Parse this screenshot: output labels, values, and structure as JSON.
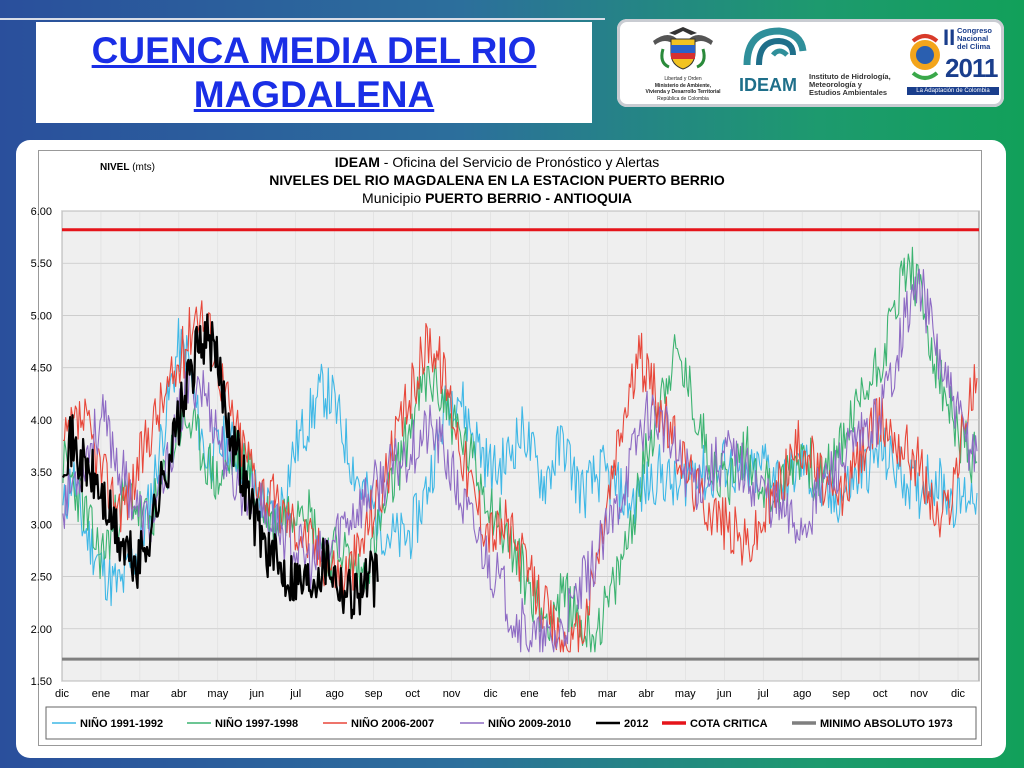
{
  "slide": {
    "title_line1": "CUENCA MEDIA DEL RIO",
    "title_line2": "MAGDALENA"
  },
  "logos": {
    "ministry_line1": "Libertad y Orden",
    "ministry_line2": "Ministerio de Ambiente,",
    "ministry_line3": "Vivienda y Desarrollo Territorial",
    "ministry_line4": "República de Colombia",
    "ideam_name": "IDEAM",
    "ideam_line1": "Instituto de Hidrología,",
    "ideam_line2": "Meteorología y",
    "ideam_line3": "Estudios Ambientales",
    "congreso_roman": "II",
    "congreso_line1": "Congreso",
    "congreso_line2": "Nacional",
    "congreso_line3": "del Clima",
    "congreso_year": "2011",
    "congreso_footer": "La Adaptación de Colombia"
  },
  "chart_data": {
    "type": "line",
    "header_bold1": "IDEAM",
    "header_rest1": " - Oficina del Servicio de Pronóstico y Alertas",
    "title": "NIVELES DEL RIO MAGDALENA EN LA ESTACION PUERTO BERRIO",
    "subtitle_prefix": "Municipio ",
    "subtitle_bold": "PUERTO BERRIO - ANTIOQUIA",
    "ylabel_bold": "NIVEL",
    "ylabel_rest": " (mts)",
    "ylim": [
      1.5,
      6.0
    ],
    "yticks": [
      "6.00",
      "5.50",
      "5.00",
      "4.50",
      "4.00",
      "3.50",
      "3.00",
      "2.50",
      "2.00",
      "1.50"
    ],
    "xticks": [
      "dic",
      "ene",
      "mar",
      "abr",
      "may",
      "jun",
      "jul",
      "ago",
      "sep",
      "oct",
      "nov",
      "dic",
      "ene",
      "feb",
      "mar",
      "abr",
      "may",
      "jun",
      "jul",
      "ago",
      "sep",
      "oct",
      "nov",
      "dic"
    ],
    "grid": true,
    "legend_position": "bottom",
    "series": [
      {
        "name": "NIÑO 1991-1992",
        "color": "#3fb8e6",
        "seed": 11,
        "values": [
          3.1,
          3.5,
          3.0,
          2.8,
          2.6,
          2.45,
          2.4,
          2.6,
          2.8,
          3.2,
          3.7,
          4.2,
          4.7,
          4.6,
          4.0,
          3.6,
          3.7,
          3.8,
          3.7,
          3.5,
          3.3,
          3.2,
          3.0,
          3.3,
          3.7,
          3.9,
          4.1,
          4.3,
          4.2,
          3.9,
          3.6,
          3.35,
          3.2,
          3.0,
          2.9,
          2.85,
          2.9,
          3.1,
          3.4,
          3.8,
          4.2,
          4.3,
          4.0,
          3.8,
          3.6,
          3.5,
          3.6,
          3.8,
          3.9,
          3.6,
          3.4,
          3.6,
          3.8,
          3.5,
          3.3,
          3.4,
          3.5,
          3.4,
          3.3,
          3.2,
          3.3,
          3.4,
          3.5,
          3.4,
          3.3,
          3.5,
          3.6,
          3.4,
          3.5,
          3.6,
          3.5,
          3.4,
          3.5,
          3.6,
          3.5,
          3.4,
          3.5,
          3.6,
          3.4,
          3.3,
          3.2,
          3.3,
          3.4,
          3.5,
          3.6,
          3.7,
          3.6,
          3.5,
          3.4,
          3.3,
          3.5,
          3.4,
          3.3,
          3.2,
          3.3,
          3.3
        ]
      },
      {
        "name": "NIÑO 1997-1998",
        "color": "#3cb371",
        "seed": 23,
        "values": [
          3.6,
          3.4,
          3.2,
          2.9,
          2.7,
          2.9,
          3.2,
          3.3,
          3.1,
          3.0,
          3.3,
          3.6,
          3.9,
          4.0,
          3.8,
          3.6,
          3.4,
          3.5,
          3.7,
          3.6,
          3.3,
          3.1,
          3.0,
          3.1,
          3.2,
          3.3,
          3.0,
          2.8,
          2.7,
          2.8,
          2.6,
          2.5,
          2.7,
          3.0,
          3.3,
          3.6,
          3.9,
          4.2,
          4.4,
          4.3,
          4.1,
          3.9,
          3.7,
          3.5,
          3.3,
          3.1,
          2.9,
          2.7,
          2.5,
          2.3,
          2.1,
          2.2,
          2.3,
          2.2,
          2.0,
          1.95,
          2.1,
          2.3,
          2.6,
          3.0,
          3.4,
          3.8,
          4.2,
          4.5,
          4.6,
          4.3,
          4.0,
          3.7,
          3.5,
          3.4,
          3.6,
          3.7,
          3.5,
          3.4,
          3.3,
          3.4,
          3.6,
          3.7,
          3.5,
          3.4,
          3.6,
          3.8,
          4.0,
          4.2,
          4.4,
          4.6,
          4.9,
          5.3,
          5.5,
          5.2,
          4.8,
          4.4,
          4.1,
          3.9,
          3.7,
          3.6
        ]
      },
      {
        "name": "NIÑO 2006-2007",
        "color": "#e8473a",
        "seed": 37,
        "values": [
          3.7,
          3.9,
          4.0,
          3.8,
          3.5,
          3.3,
          3.2,
          3.3,
          3.6,
          3.9,
          4.1,
          4.3,
          4.5,
          4.8,
          5.1,
          4.9,
          4.6,
          4.2,
          3.9,
          3.7,
          3.5,
          3.3,
          3.2,
          3.1,
          3.0,
          2.9,
          2.8,
          2.7,
          2.6,
          2.5,
          2.6,
          2.8,
          3.1,
          3.3,
          3.6,
          3.9,
          4.2,
          4.5,
          4.8,
          4.6,
          4.3,
          3.9,
          3.5,
          3.2,
          3.0,
          2.9,
          3.0,
          2.8,
          2.6,
          2.4,
          2.2,
          2.0,
          1.85,
          1.8,
          2.0,
          2.4,
          2.9,
          3.4,
          3.9,
          4.3,
          4.6,
          4.4,
          4.1,
          3.9,
          3.7,
          3.5,
          3.3,
          3.2,
          3.1,
          3.0,
          2.9,
          2.8,
          2.9,
          3.1,
          3.3,
          3.5,
          3.7,
          3.8,
          3.6,
          3.4,
          3.2,
          3.3,
          3.5,
          3.7,
          3.9,
          4.0,
          3.9,
          3.8,
          3.7,
          3.6,
          3.3,
          3.0,
          3.2,
          3.6,
          4.1,
          4.4
        ]
      },
      {
        "name": "NIÑO 2009-2010",
        "color": "#8e6bc4",
        "seed": 53,
        "values": [
          3.2,
          3.4,
          3.6,
          3.8,
          4.0,
          3.8,
          3.5,
          3.3,
          3.1,
          3.0,
          3.2,
          3.6,
          4.0,
          4.3,
          4.4,
          4.2,
          3.9,
          3.6,
          3.4,
          3.3,
          3.2,
          3.1,
          3.0,
          2.9,
          2.8,
          2.7,
          2.6,
          2.7,
          2.8,
          3.0,
          3.1,
          3.2,
          3.3,
          3.4,
          3.5,
          3.6,
          3.7,
          3.8,
          3.9,
          3.8,
          3.6,
          3.3,
          3.1,
          2.9,
          2.7,
          2.5,
          2.3,
          2.1,
          2.0,
          1.9,
          1.85,
          1.9,
          2.0,
          2.2,
          2.4,
          2.6,
          2.8,
          3.0,
          3.3,
          3.6,
          3.9,
          4.1,
          4.0,
          3.8,
          3.6,
          3.5,
          3.4,
          3.5,
          3.6,
          3.7,
          3.6,
          3.5,
          3.4,
          3.3,
          3.2,
          3.1,
          3.0,
          3.0,
          3.2,
          3.4,
          3.5,
          3.6,
          3.7,
          3.8,
          3.9,
          4.1,
          4.4,
          4.8,
          5.1,
          5.3,
          5.0,
          4.6,
          4.3,
          4.0,
          3.8,
          3.7
        ]
      },
      {
        "name": "2012",
        "color": "#000000",
        "seed": 71,
        "values": [
          3.7,
          3.8,
          3.6,
          3.5,
          3.4,
          3.2,
          3.0,
          2.8,
          2.7,
          2.6,
          2.8,
          3.1,
          3.4,
          3.7,
          4.0,
          4.3,
          4.6,
          4.8,
          4.7,
          4.4,
          4.0,
          3.7,
          3.4,
          3.1,
          2.9,
          2.7,
          2.6,
          2.55,
          2.5,
          2.45,
          2.5,
          2.6,
          2.7,
          2.5,
          2.4,
          2.35,
          2.4,
          2.5,
          2.45
        ]
      },
      {
        "name": "COTA CRITICA",
        "color": "#e5141a",
        "constant": 5.82
      },
      {
        "name": "MINIMO ABSOLUTO 1973",
        "color": "#7f7f7f",
        "constant": 1.71
      }
    ]
  }
}
